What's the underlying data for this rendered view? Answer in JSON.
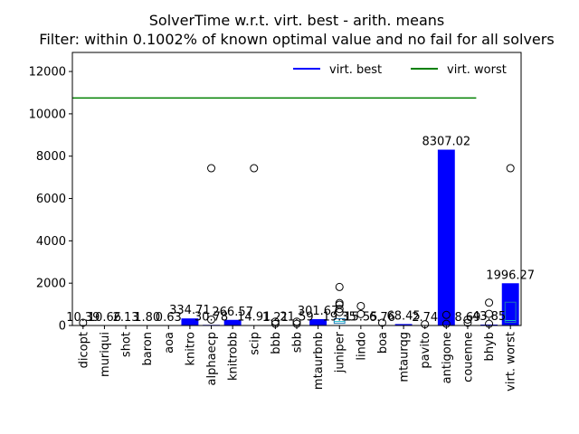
{
  "chart_data": {
    "type": "bar",
    "title": "SolverTime w.r.t. virt. best - arith. means",
    "subtitle": "Filter: within 0.1002% of known optimal value and no fail for all solvers",
    "xlabel": "",
    "ylabel": "",
    "ylim": [
      0,
      12900
    ],
    "yticks": [
      0,
      2000,
      4000,
      6000,
      8000,
      10000,
      12000
    ],
    "ytick_labels": [
      "0",
      "2000",
      "4000",
      "6000",
      "8000",
      "10000",
      "12000"
    ],
    "grid": false,
    "legend_position": "top-right",
    "categories": [
      "dicopt",
      "muriqui",
      "shot",
      "baron",
      "aoa",
      "knitro",
      "alphaecp",
      "knitrobb",
      "scip",
      "bbb",
      "sbb",
      "mtaurbnb",
      "juniper",
      "lindo",
      "boa",
      "mtaurqg",
      "pavito",
      "antigone",
      "couenne",
      "bhyb",
      "virt. worst"
    ],
    "series": [
      {
        "name": "",
        "color": "#0000ff",
        "values": [
          10.39,
          10.66,
          2.13,
          1.8,
          0.63,
          334.71,
          30.78,
          266.57,
          14.91,
          1.21,
          21.59,
          301.67,
          19.35,
          15.55,
          6.76,
          68.45,
          2.74,
          8307.02,
          8.69,
          43.85,
          1996.27
        ],
        "labels": [
          "10.39",
          "10.66",
          "2.13",
          "1.80",
          "0.63",
          "334.71",
          "30.78",
          "266.57",
          "14.91",
          "1.21",
          "21.59",
          "301.67",
          "19.35",
          "15.55",
          "6.76",
          "68.45",
          "2.74",
          "8307.02",
          "8.69",
          "43.85",
          "1996.27"
        ]
      }
    ],
    "reference_lines": [
      {
        "name": "virt. best",
        "color": "#0000ff",
        "value": 0
      },
      {
        "name": "virt. worst",
        "color": "#008000",
        "value": 10750
      }
    ],
    "outliers": [
      {
        "category": "dicopt",
        "values": [
          130
        ]
      },
      {
        "category": "alphaecp",
        "values": [
          7430,
          280
        ]
      },
      {
        "category": "scip",
        "values": [
          7430
        ]
      },
      {
        "category": "bbb",
        "values": [
          180,
          80
        ]
      },
      {
        "category": "sbb",
        "values": [
          180,
          80
        ]
      },
      {
        "category": "juniper",
        "values": [
          1820,
          1060,
          980,
          780,
          630
        ]
      },
      {
        "category": "lindo",
        "values": [
          920,
          540
        ]
      },
      {
        "category": "boa",
        "values": [
          130
        ]
      },
      {
        "category": "pavito",
        "values": [
          60
        ]
      },
      {
        "category": "antigone",
        "values": [
          500,
          80
        ]
      },
      {
        "category": "couenne",
        "values": [
          280,
          130
        ]
      },
      {
        "category": "bhyb",
        "values": [
          1080,
          550,
          80
        ]
      },
      {
        "category": "virt. worst",
        "values": [
          7430
        ]
      }
    ],
    "boxes": [
      {
        "category": "juniper",
        "low": 100,
        "high": 320
      },
      {
        "category": "virt. worst",
        "low": 150,
        "high": 1100
      }
    ]
  }
}
